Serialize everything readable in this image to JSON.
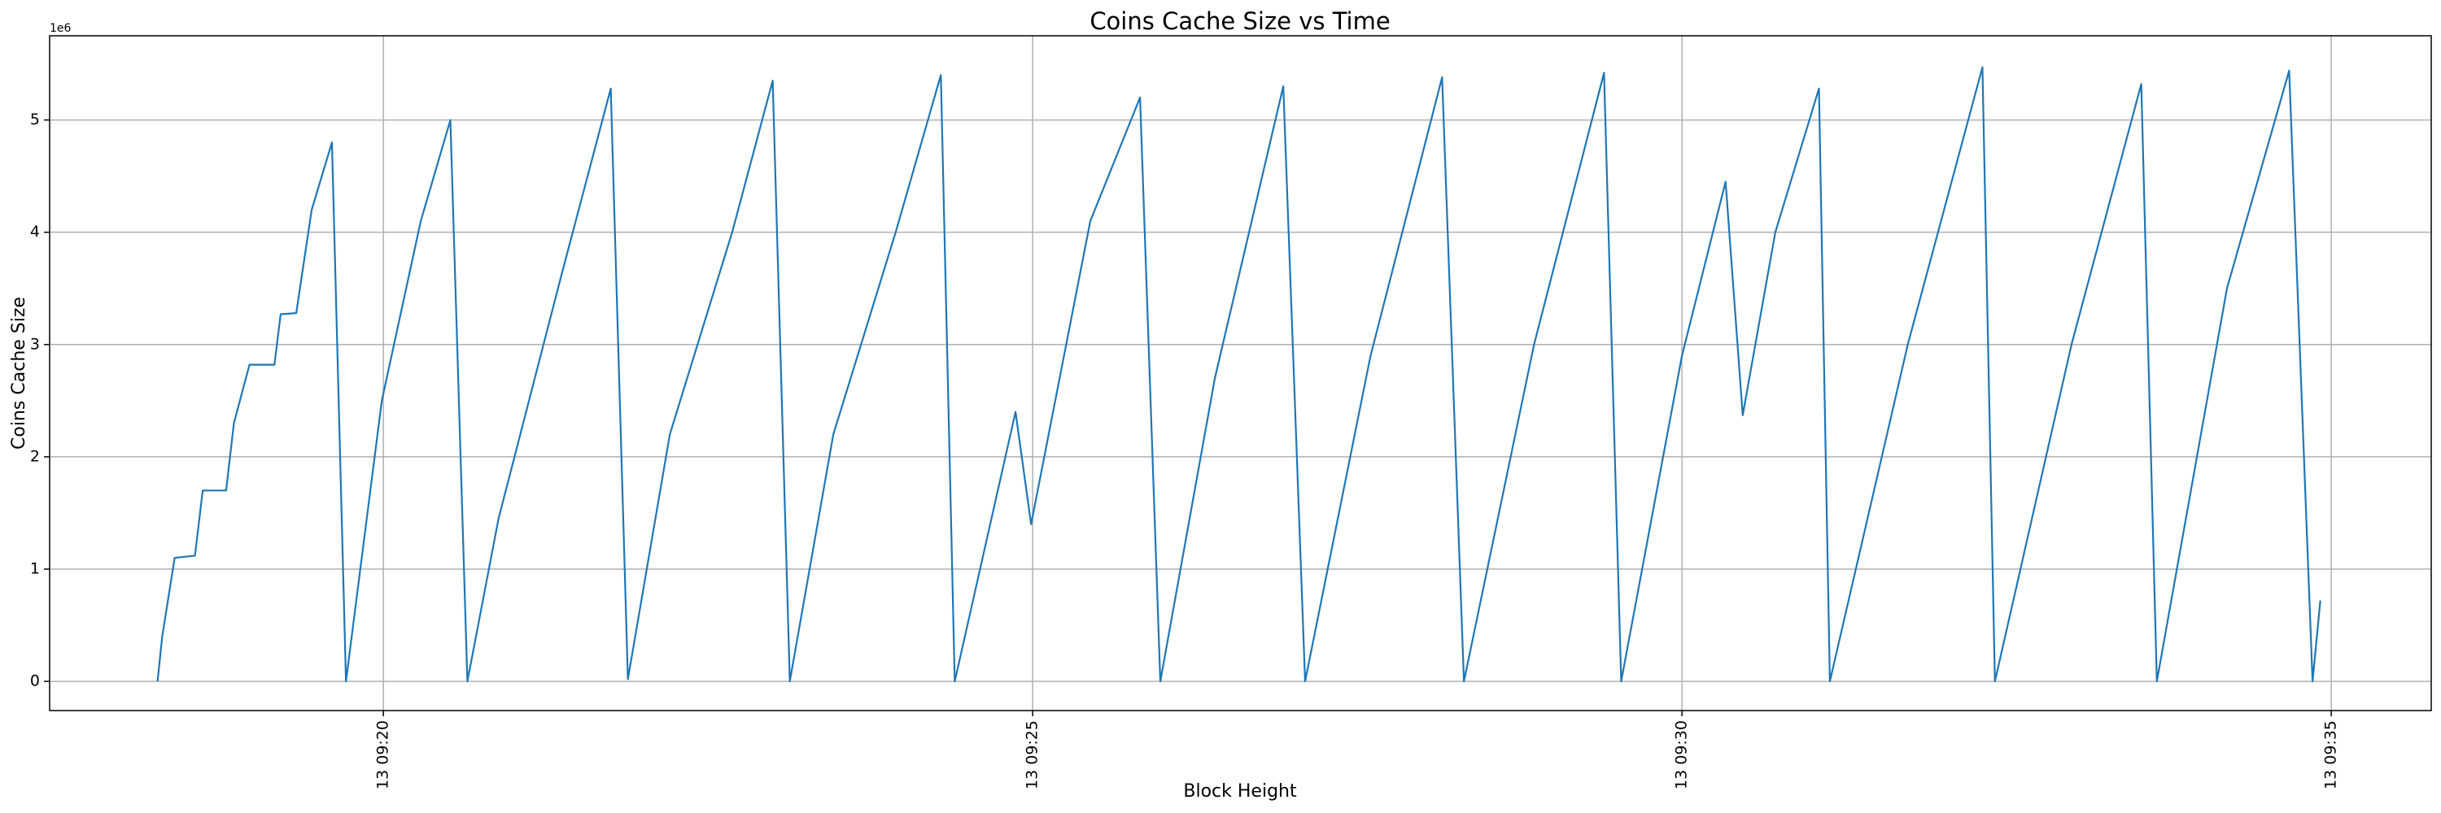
{
  "chart_data": {
    "type": "line",
    "title": "Coins Cache Size vs Time",
    "x_label": "Block Height",
    "y_label": "Coins Cache Size",
    "y_offset_label": "1e6",
    "x": [
      18.261,
      18.297,
      18.393,
      18.549,
      18.609,
      18.789,
      18.849,
      18.969,
      19.161,
      19.209,
      19.329,
      19.448,
      19.604,
      19.712,
      19.988,
      20.288,
      20.516,
      20.647,
      20.887,
      21.367,
      21.751,
      21.883,
      22.206,
      22.686,
      22.998,
      23.13,
      23.465,
      23.945,
      24.293,
      24.4,
      24.868,
      24.988,
      25.444,
      25.827,
      25.983,
      26.403,
      26.93,
      27.098,
      27.602,
      28.153,
      28.321,
      28.861,
      29.4,
      29.532,
      30.0,
      30.336,
      30.468,
      30.719,
      31.055,
      31.139,
      31.739,
      32.314,
      32.41,
      33.0,
      33.537,
      33.657,
      34.197,
      34.676,
      34.856,
      34.916
    ],
    "series": [
      {
        "name": "Coins Cache Size",
        "color": "#1f77b4",
        "values": [
          0,
          0.4,
          1.1,
          1.12,
          1.7,
          1.7,
          2.3,
          2.82,
          2.82,
          3.27,
          3.28,
          4.2,
          4.8,
          0,
          2.5,
          4.1,
          5.0,
          0,
          1.45,
          3.6,
          5.28,
          0.02,
          2.2,
          4.0,
          5.35,
          0,
          2.2,
          4.0,
          5.4,
          0,
          2.4,
          1.4,
          4.1,
          5.2,
          0,
          2.7,
          5.3,
          0,
          2.9,
          5.38,
          0,
          3.0,
          5.42,
          0,
          2.9,
          4.45,
          2.37,
          4.0,
          5.28,
          0,
          3.0,
          5.47,
          0,
          3.0,
          5.32,
          0,
          3.5,
          5.44,
          0,
          0.72
        ]
      }
    ],
    "xlim": [
      17.43,
      35.77
    ],
    "xticks": [
      {
        "value": 20,
        "label": "13 09:20"
      },
      {
        "value": 25,
        "label": "13 09:25"
      },
      {
        "value": 30,
        "label": "13 09:30"
      },
      {
        "value": 35,
        "label": "13 09:35"
      }
    ],
    "ylim": [
      -0.26,
      5.75
    ],
    "yticks": [
      0,
      1,
      2,
      3,
      4,
      5
    ],
    "grid": true
  }
}
